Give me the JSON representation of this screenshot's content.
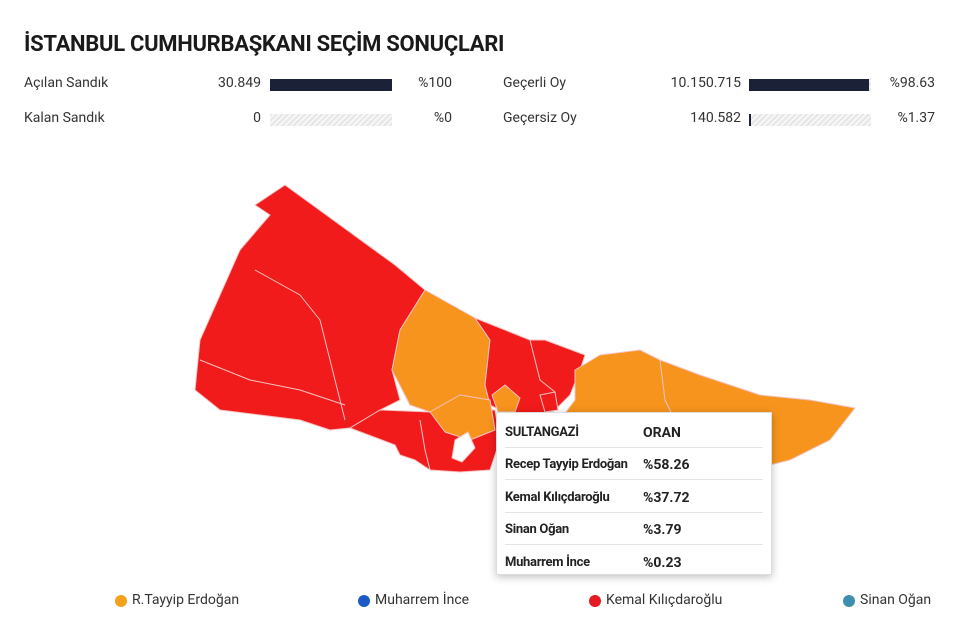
{
  "header": {
    "title": "İSTANBUL CUMHURBAŞKANI SEÇİM SONUÇLARI"
  },
  "stats": [
    {
      "label": "Açılan Sandık",
      "value": "30.849",
      "percent": {
        "value": 100,
        "label": "%100"
      }
    },
    {
      "label": "Kalan Sandık",
      "value": "0",
      "percent": {
        "value": 0,
        "label": "%0"
      }
    },
    {
      "label": "Geçerli Oy",
      "value": "10.150.715",
      "percent": {
        "value": 98.63,
        "label": "%98.63"
      }
    },
    {
      "label": "Geçersiz Oy",
      "value": "140.582",
      "percent": {
        "value": 1.37,
        "label": "%1.37"
      }
    }
  ],
  "tooltip": {
    "district": "SULTANGAZİ",
    "column": "ORAN",
    "rows": [
      [
        "Recep Tayyip Erdoğan",
        "%58.26"
      ],
      [
        "Kemal Kılıçdaroğlu",
        "%37.72"
      ],
      [
        "Sinan Oğan",
        "%3.79"
      ],
      [
        "Muharrem İnce",
        "%0.23"
      ]
    ]
  },
  "legend": [
    {
      "name": "R.Tayyip Erdoğan",
      "color": "#f5a01a"
    },
    {
      "name": "Muharrem İnce",
      "color": "#1a5bc4"
    },
    {
      "name": "Kemal Kılıçdaroğlu",
      "color": "#e51b23"
    },
    {
      "name": "Sinan Oğan",
      "color": "#3d8fb0"
    }
  ]
}
